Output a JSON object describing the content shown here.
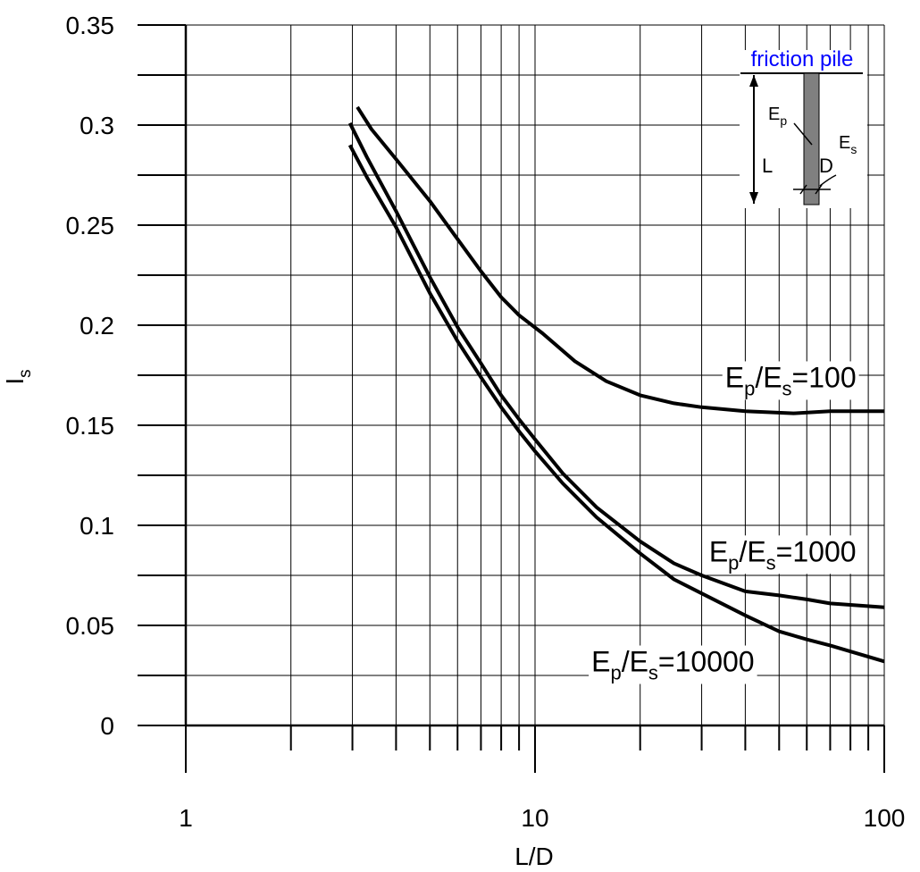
{
  "chart_data": {
    "type": "line",
    "xscale": "log",
    "xlim": [
      1,
      100
    ],
    "ylim": [
      0,
      0.35
    ],
    "grid": true,
    "xlabel": "L/D",
    "ylabel": {
      "base": "I",
      "sub": "s"
    },
    "xticks": [
      {
        "value": 1,
        "label": "1"
      },
      {
        "value": 10,
        "label": "10"
      },
      {
        "value": 100,
        "label": "100"
      }
    ],
    "yticks": [
      {
        "value": 0,
        "label": "0"
      },
      {
        "value": 0.05,
        "label": "0.05"
      },
      {
        "value": 0.1,
        "label": "0.1"
      },
      {
        "value": 0.15,
        "label": "0.15"
      },
      {
        "value": 0.2,
        "label": "0.2"
      },
      {
        "value": 0.25,
        "label": "0.25"
      },
      {
        "value": 0.3,
        "label": "0.3"
      },
      {
        "value": 0.35,
        "label": "0.35"
      }
    ],
    "series": [
      {
        "ratio": "100",
        "x": [
          3.1,
          3.4,
          4,
          5,
          6,
          7,
          8,
          9,
          10.5,
          13,
          16,
          20,
          25,
          30,
          40,
          55,
          70,
          100
        ],
        "y": [
          0.309,
          0.298,
          0.283,
          0.262,
          0.243,
          0.227,
          0.214,
          0.205,
          0.196,
          0.182,
          0.172,
          0.165,
          0.161,
          0.159,
          0.157,
          0.156,
          0.157,
          0.157
        ]
      },
      {
        "ratio": "1000",
        "x": [
          2.95,
          3.3,
          4,
          5,
          6,
          7,
          8,
          9,
          10,
          12,
          15,
          20,
          25,
          30,
          40,
          50,
          60,
          70,
          100
        ],
        "y": [
          0.301,
          0.284,
          0.257,
          0.224,
          0.199,
          0.181,
          0.165,
          0.153,
          0.143,
          0.126,
          0.109,
          0.092,
          0.081,
          0.075,
          0.067,
          0.065,
          0.063,
          0.061,
          0.059
        ]
      },
      {
        "ratio": "10000",
        "x": [
          2.95,
          3.3,
          4,
          5,
          6,
          7,
          8,
          9,
          10,
          12,
          15,
          20,
          25,
          30,
          40,
          50,
          60,
          70,
          100
        ],
        "y": [
          0.29,
          0.274,
          0.249,
          0.216,
          0.192,
          0.174,
          0.159,
          0.147,
          0.137,
          0.121,
          0.104,
          0.086,
          0.073,
          0.066,
          0.055,
          0.047,
          0.043,
          0.04,
          0.032
        ]
      }
    ],
    "curve_labels": [
      {
        "series": 0,
        "at_x": 35,
        "at_y": 0.169,
        "parts": [
          {
            "t": "E"
          },
          {
            "t": "p",
            "sub": true
          },
          {
            "t": "/E"
          },
          {
            "t": "s",
            "sub": true
          },
          {
            "t": "=100"
          }
        ]
      },
      {
        "series": 1,
        "at_x": 31.5,
        "at_y": 0.082,
        "parts": [
          {
            "t": "E"
          },
          {
            "t": "p",
            "sub": true
          },
          {
            "t": "/E"
          },
          {
            "t": "s",
            "sub": true
          },
          {
            "t": "=1000"
          }
        ]
      },
      {
        "series": 2,
        "at_x": 14.5,
        "at_y": 0.027,
        "parts": [
          {
            "t": "E"
          },
          {
            "t": "p",
            "sub": true
          },
          {
            "t": "/E"
          },
          {
            "t": "s",
            "sub": true
          },
          {
            "t": "=10000"
          }
        ]
      }
    ],
    "inset": {
      "title": "friction pile",
      "title_color": "#0000ff",
      "labels": {
        "ep": {
          "base": "E",
          "sub": "p"
        },
        "es": {
          "base": "E",
          "sub": "s"
        },
        "length": "L",
        "diameter": "D"
      },
      "pile_color": "#808080"
    }
  }
}
